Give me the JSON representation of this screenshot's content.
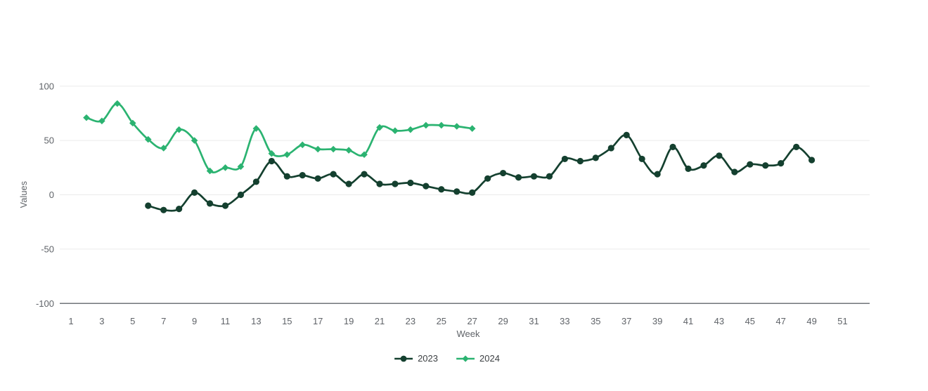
{
  "chart_data": {
    "type": "line",
    "xlabel": "Week",
    "ylabel": "Values",
    "xticks": [
      1,
      3,
      5,
      7,
      9,
      11,
      13,
      15,
      17,
      19,
      21,
      23,
      25,
      27,
      29,
      31,
      33,
      35,
      37,
      39,
      41,
      43,
      45,
      47,
      49,
      51
    ],
    "yticks": [
      100,
      50,
      0,
      -50,
      -100
    ],
    "ylim": [
      -100,
      100
    ],
    "xlim": [
      1,
      52
    ],
    "grid": true,
    "legend_position": "bottom",
    "colors": {
      "grid_line": "#ebebeb",
      "axis_line": "#70757a",
      "tick_text": "#5f6368",
      "legend_text": "#3c4043",
      "background": "#ffffff"
    },
    "series": [
      {
        "name": "2023",
        "color": "#14402f",
        "marker": "circle",
        "x": [
          6,
          7,
          8,
          9,
          10,
          11,
          12,
          13,
          14,
          15,
          16,
          17,
          18,
          19,
          20,
          21,
          22,
          23,
          24,
          25,
          26,
          27,
          28,
          29,
          30,
          31,
          32,
          33,
          34,
          35,
          36,
          37,
          38,
          39,
          40,
          41,
          42,
          43,
          44,
          45,
          46,
          47,
          48,
          49
        ],
        "values": [
          -10,
          -14,
          -13,
          2,
          -8,
          -10,
          0,
          12,
          31,
          17,
          18,
          15,
          19,
          10,
          19,
          10,
          10,
          11,
          8,
          5,
          3,
          2,
          15,
          20,
          16,
          17,
          17,
          33,
          31,
          34,
          43,
          55,
          33,
          19,
          44,
          24,
          27,
          36,
          21,
          28,
          27,
          29,
          44,
          32
        ]
      },
      {
        "name": "2024",
        "color": "#2bb371",
        "marker": "diamond",
        "x": [
          2,
          3,
          4,
          5,
          6,
          7,
          8,
          9,
          10,
          11,
          12,
          13,
          14,
          15,
          16,
          17,
          18,
          19,
          20,
          21,
          22,
          23,
          24,
          25,
          26,
          27
        ],
        "values": [
          71,
          68,
          84,
          66,
          51,
          43,
          60,
          50,
          22,
          25,
          26,
          61,
          38,
          37,
          46,
          42,
          42,
          41,
          37,
          62,
          59,
          60,
          64,
          64,
          63,
          61
        ]
      }
    ]
  }
}
